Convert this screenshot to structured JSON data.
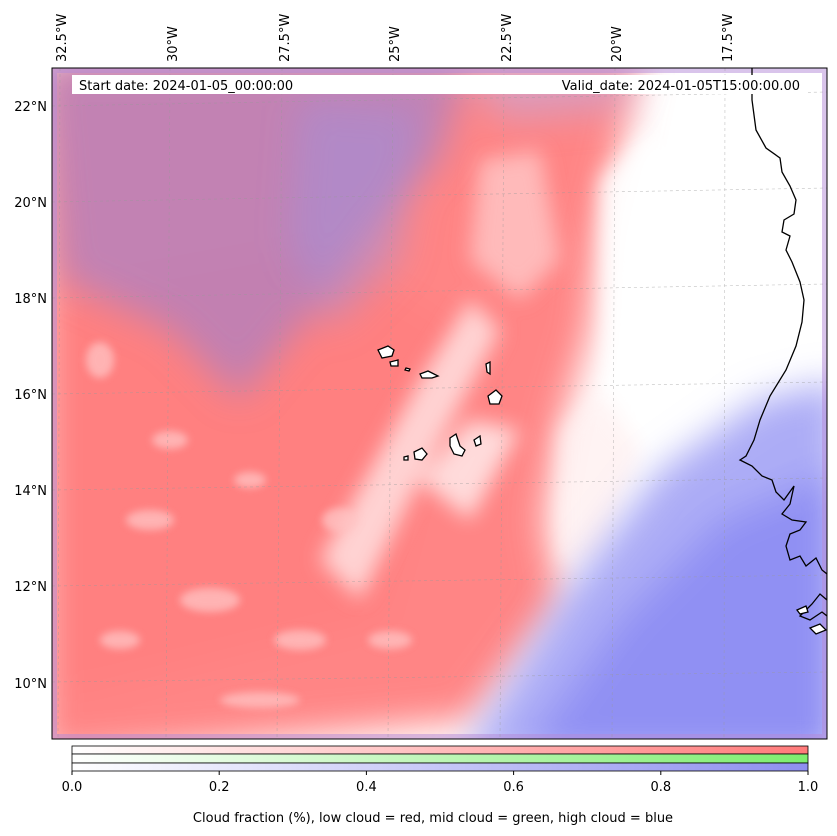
{
  "info_bar": {
    "start_date": "Start date: 2024-01-05_00:00:00",
    "valid_date": "Valid_date: 2024-01-05T15:00:00.00"
  },
  "longitude_labels": [
    {
      "lon": -32.5,
      "label": "32.5°W"
    },
    {
      "lon": -30.0,
      "label": "30°W"
    },
    {
      "lon": -27.5,
      "label": "27.5°W"
    },
    {
      "lon": -25.0,
      "label": "25°W"
    },
    {
      "lon": -22.5,
      "label": "22.5°W"
    },
    {
      "lon": -20.0,
      "label": "20°W"
    },
    {
      "lon": -17.5,
      "label": "17.5°W"
    }
  ],
  "latitude_labels": [
    {
      "lat": 22,
      "label": "22°N"
    },
    {
      "lat": 20,
      "label": "20°N"
    },
    {
      "lat": 18,
      "label": "18°N"
    },
    {
      "lat": 16,
      "label": "16°N"
    },
    {
      "lat": 14,
      "label": "14°N"
    },
    {
      "lat": 12,
      "label": "12°N"
    },
    {
      "lat": 10,
      "label": "10°N"
    }
  ],
  "colorbar": {
    "min": 0.0,
    "max": 1.0,
    "ticks": [
      "0.0",
      "0.2",
      "0.4",
      "0.6",
      "0.8",
      "1.0"
    ],
    "label": "Cloud fraction (%), low cloud = red, mid cloud = green, high cloud = blue",
    "rows": [
      {
        "name": "low",
        "color": "#ff7a7a"
      },
      {
        "name": "mid",
        "color": "#7ded6e"
      },
      {
        "name": "high",
        "color": "#8e8ef0"
      }
    ]
  },
  "colors": {
    "low_cloud": "#ff8080",
    "high_cloud": "#8888f5",
    "coastline": "#000000"
  }
}
